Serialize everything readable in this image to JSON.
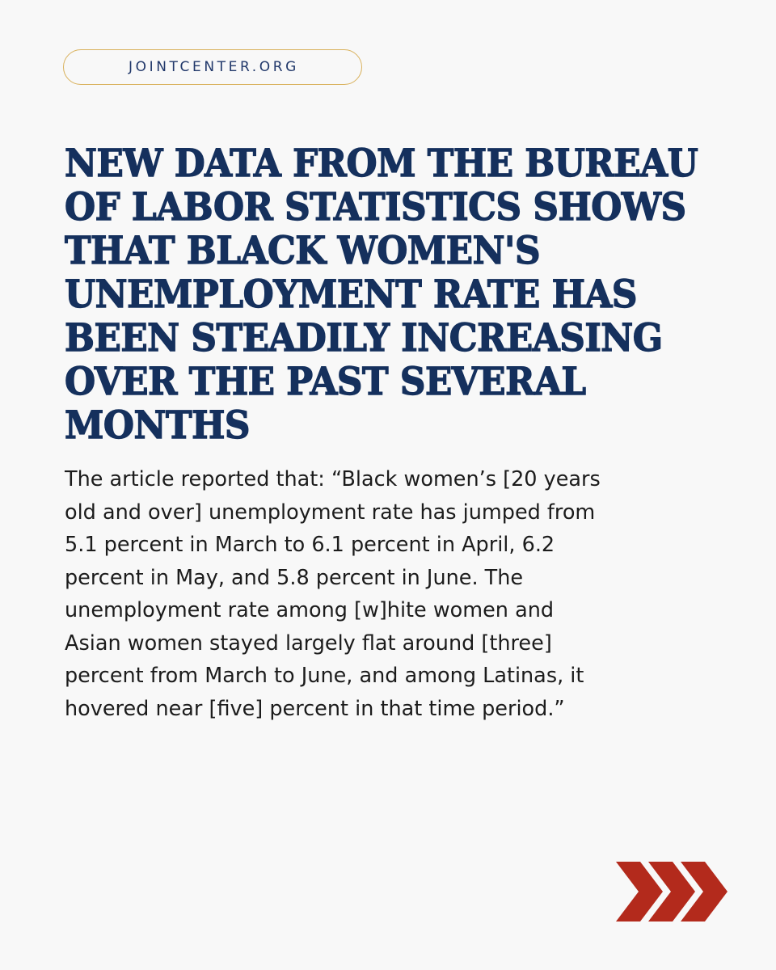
{
  "header": {
    "site_label": "JOINTCENTER.ORG"
  },
  "headline": {
    "lines": [
      "NEW DATA FROM THE BUREAU",
      "OF LABOR STATISTICS SHOWS",
      "THAT BLACK WOMEN'S",
      "UNEMPLOYMENT RATE HAS",
      "BEEN STEADILY INCREASING",
      "OVER THE PAST SEVERAL",
      "MONTHS"
    ]
  },
  "body": {
    "lines": [
      "The article reported that: “Black women’s [20 years",
      "old and over] unemployment rate has jumped from",
      "5.1 percent in March to 6.1 percent in April, 6.2",
      "percent in May, and 5.8 percent in June. The",
      "unemployment rate among [w]hite women and",
      "Asian women stayed largely flat around [three]",
      "percent from March to June, and among Latinas, it",
      "hovered near [five] percent in that time period.”"
    ]
  },
  "decoration": {
    "icon": "triple-chevron-right-icon",
    "color": "#b32a1c"
  },
  "colors": {
    "background": "#f8f8f8",
    "navy": "#15305d",
    "gold_border": "#d9b15c"
  }
}
